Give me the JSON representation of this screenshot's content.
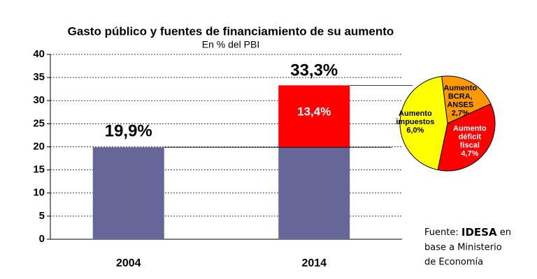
{
  "chart_data": [
    {
      "type": "bar",
      "stacked": true,
      "title": "Gasto público y fuentes de financiamiento de su aumento",
      "subtitle": "En % del PBI",
      "categories": [
        "2004",
        "2014"
      ],
      "series": [
        {
          "color": "#666699",
          "values": [
            19.9,
            19.9
          ],
          "value_labels": [
            "19,9%",
            null
          ]
        },
        {
          "color": "#ff0000",
          "values": [
            null,
            13.4
          ],
          "value_labels": [
            null,
            "13,4%"
          ]
        }
      ],
      "annotations": [
        {
          "text": "33,3%",
          "value": 33.3
        }
      ],
      "ylim": [
        0,
        40
      ],
      "yticks": [
        0,
        5,
        10,
        15,
        20,
        25,
        30,
        35,
        40
      ],
      "grid": true
    },
    {
      "type": "pie",
      "categories": [
        [
          "Aumento",
          "BCRA,",
          "ANSES"
        ],
        [
          "Aumento",
          "déficit",
          "fiscal"
        ],
        [
          "Aumento",
          "impuestos"
        ]
      ],
      "values": [
        2.7,
        4.7,
        6.0
      ],
      "value_labels": [
        "2,7%",
        "4,7%",
        "6,0%"
      ],
      "colors": [
        "#ff9900",
        "#ff0000",
        "#ffff00"
      ]
    }
  ],
  "source": {
    "prefix": "Fuente:",
    "org": "IDESA",
    "suffix": "en",
    "lines": [
      "base a Ministerio",
      "de Economía"
    ]
  }
}
